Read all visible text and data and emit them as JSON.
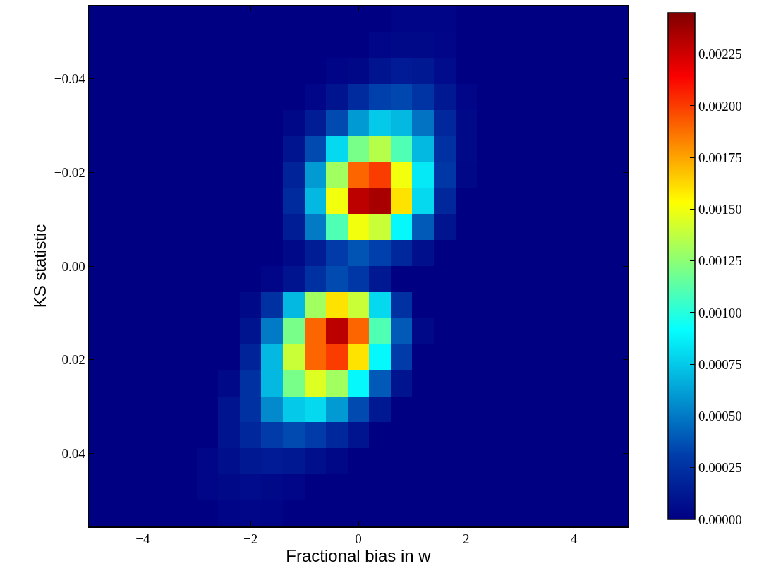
{
  "chart_data": {
    "type": "heatmap",
    "xlabel": "Fractional bias in w",
    "ylabel": "KS statistic",
    "x": [
      -4.8,
      -4.4,
      -4.0,
      -3.6,
      -3.2,
      -2.8,
      -2.4,
      -2.0,
      -1.6,
      -1.2,
      -0.8,
      -0.4,
      0.0,
      0.4,
      0.8,
      1.2,
      1.6,
      2.0,
      2.4,
      2.8,
      3.2,
      3.6,
      4.0,
      4.4,
      4.8
    ],
    "y": [
      -0.0528,
      -0.0472,
      -0.0417,
      -0.0361,
      -0.0306,
      -0.025,
      -0.0194,
      -0.0139,
      -0.0083,
      -0.0028,
      0.0028,
      0.0083,
      0.0139,
      0.0194,
      0.025,
      0.0306,
      0.0361,
      0.0417,
      0.0472,
      0.0528
    ],
    "cells": [
      [
        0,
        0,
        0,
        0,
        0,
        0,
        0,
        0,
        0,
        0,
        0,
        0,
        0,
        0,
        2e-05,
        2e-05,
        2e-05,
        0,
        0,
        0,
        0,
        0,
        0,
        0,
        0
      ],
      [
        0,
        0,
        0,
        0,
        0,
        0,
        0,
        0,
        0,
        0,
        0,
        0,
        0,
        3e-05,
        5e-05,
        5e-05,
        3e-05,
        0,
        0,
        0,
        0,
        0,
        0,
        0,
        0
      ],
      [
        0,
        0,
        0,
        0,
        0,
        0,
        0,
        0,
        0,
        0,
        0,
        2e-05,
        4e-05,
        0.0001,
        0.00014,
        0.00012,
        6e-05,
        0,
        0,
        0,
        0,
        0,
        0,
        0,
        0
      ],
      [
        0,
        0,
        0,
        0,
        0,
        0,
        0,
        0,
        0,
        0,
        3e-05,
        0.0001,
        0.00022,
        0.00032,
        0.00034,
        0.00026,
        0.00012,
        3e-05,
        0,
        0,
        0,
        0,
        0,
        0,
        0
      ],
      [
        0,
        0,
        0,
        0,
        0,
        0,
        0,
        0,
        0,
        4e-05,
        0.00015,
        0.00035,
        0.0006,
        0.00075,
        0.0007,
        0.00048,
        0.0002,
        5e-05,
        0,
        0,
        0,
        0,
        0,
        0,
        0
      ],
      [
        0,
        0,
        0,
        0,
        0,
        0,
        0,
        0,
        0,
        0.0001,
        0.00035,
        0.0008,
        0.0012,
        0.00135,
        0.0011,
        0.0007,
        0.00025,
        5e-05,
        0,
        0,
        0,
        0,
        0,
        0,
        0
      ],
      [
        0,
        0,
        0,
        0,
        0,
        0,
        0,
        0,
        0,
        0.00018,
        0.0006,
        0.0013,
        0.0019,
        0.002,
        0.0015,
        0.00085,
        0.00028,
        4e-05,
        0,
        0,
        0,
        0,
        0,
        0,
        0
      ],
      [
        0,
        0,
        0,
        0,
        0,
        0,
        0,
        0,
        0,
        0.00022,
        0.0007,
        0.0015,
        0.0023,
        0.00235,
        0.0016,
        0.0008,
        0.0002,
        0,
        0,
        0,
        0,
        0,
        0,
        0,
        0
      ],
      [
        0,
        0,
        0,
        0,
        0,
        0,
        0,
        0,
        0,
        0.00015,
        0.0005,
        0.0011,
        0.0015,
        0.0014,
        0.0009,
        0.0004,
        0.0001,
        0,
        0,
        0,
        0,
        0,
        0,
        0,
        0
      ],
      [
        0,
        0,
        0,
        0,
        0,
        0,
        0,
        0,
        0,
        5e-05,
        0.00015,
        0.0003,
        0.00038,
        0.00032,
        0.0002,
        8e-05,
        0,
        0,
        0,
        0,
        0,
        0,
        0,
        0,
        0
      ],
      [
        0,
        0,
        0,
        0,
        0,
        0,
        0,
        0,
        3e-05,
        0.0001,
        0.00025,
        0.00035,
        0.00028,
        0.00012,
        0,
        0,
        0,
        0,
        0,
        0,
        0,
        0,
        0,
        0,
        0
      ],
      [
        0,
        0,
        0,
        0,
        0,
        0,
        0,
        5e-05,
        0.00025,
        0.0007,
        0.0013,
        0.0016,
        0.0014,
        0.0008,
        0.00025,
        0,
        0,
        0,
        0,
        0,
        0,
        0,
        0,
        0,
        0
      ],
      [
        0,
        0,
        0,
        0,
        0,
        0,
        0,
        0.0001,
        0.0005,
        0.0012,
        0.0019,
        0.0023,
        0.0019,
        0.0011,
        0.0004,
        5e-05,
        0,
        0,
        0,
        0,
        0,
        0,
        0,
        0,
        0
      ],
      [
        0,
        0,
        0,
        0,
        0,
        0,
        0,
        0.00018,
        0.0007,
        0.0014,
        0.0019,
        0.002,
        0.0016,
        0.0009,
        0.0003,
        0,
        0,
        0,
        0,
        0,
        0,
        0,
        0,
        0,
        0
      ],
      [
        0,
        0,
        0,
        0,
        0,
        0,
        5e-05,
        0.00025,
        0.0007,
        0.0012,
        0.00145,
        0.0013,
        0.0009,
        0.0004,
        0.0001,
        0,
        0,
        0,
        0,
        0,
        0,
        0,
        0,
        0,
        0
      ],
      [
        0,
        0,
        0,
        0,
        0,
        0,
        0.0001,
        0.00025,
        0.00055,
        0.00075,
        0.0008,
        0.0006,
        0.00035,
        0.00012,
        0,
        0,
        0,
        0,
        0,
        0,
        0,
        0,
        0,
        0,
        0
      ],
      [
        0,
        0,
        0,
        0,
        0,
        0,
        0.0001,
        0.0002,
        0.0003,
        0.00035,
        0.0003,
        0.0002,
        0.0001,
        0,
        0,
        0,
        0,
        0,
        0,
        0,
        0,
        0,
        0,
        0,
        0
      ],
      [
        0,
        0,
        0,
        0,
        0,
        3e-05,
        8e-05,
        0.00012,
        0.00014,
        0.00012,
        8e-05,
        4e-05,
        0,
        0,
        0,
        0,
        0,
        0,
        0,
        0,
        0,
        0,
        0,
        0,
        0
      ],
      [
        0,
        0,
        0,
        0,
        0,
        3e-05,
        5e-05,
        6e-05,
        5e-05,
        3e-05,
        0,
        0,
        0,
        0,
        0,
        0,
        0,
        0,
        0,
        0,
        0,
        0,
        0,
        0,
        0
      ],
      [
        0,
        0,
        0,
        0,
        0,
        0,
        2e-05,
        3e-05,
        2e-05,
        0,
        0,
        0,
        0,
        0,
        0,
        0,
        0,
        0,
        0,
        0,
        0,
        0,
        0,
        0,
        0
      ]
    ],
    "xlim": [
      -5,
      5
    ],
    "xticks": [
      {
        "value": -4,
        "label": "−4"
      },
      {
        "value": -2,
        "label": "−2"
      },
      0,
      2,
      4
    ],
    "ylim": [
      0.0556,
      -0.0556
    ],
    "yticks": [
      {
        "value": -0.04,
        "label": "−0.04"
      },
      {
        "value": -0.02,
        "label": "−0.02"
      },
      {
        "value": 0,
        "label": "0.00"
      },
      {
        "value": 0.02,
        "label": "0.02"
      },
      {
        "value": 0.04,
        "label": "0.04"
      }
    ],
    "clim": [
      0,
      0.00245
    ],
    "cticks": [
      {
        "value": 0,
        "label": "0.00000"
      },
      {
        "value": 0.00025,
        "label": "0.00025"
      },
      {
        "value": 0.0005,
        "label": "0.00050"
      },
      {
        "value": 0.00075,
        "label": "0.00075"
      },
      {
        "value": 0.001,
        "label": "0.00100"
      },
      {
        "value": 0.00125,
        "label": "0.00125"
      },
      {
        "value": 0.0015,
        "label": "0.00150"
      },
      {
        "value": 0.00175,
        "label": "0.00175"
      },
      {
        "value": 0.002,
        "label": "0.00200"
      },
      {
        "value": 0.00225,
        "label": "0.00225"
      }
    ]
  }
}
